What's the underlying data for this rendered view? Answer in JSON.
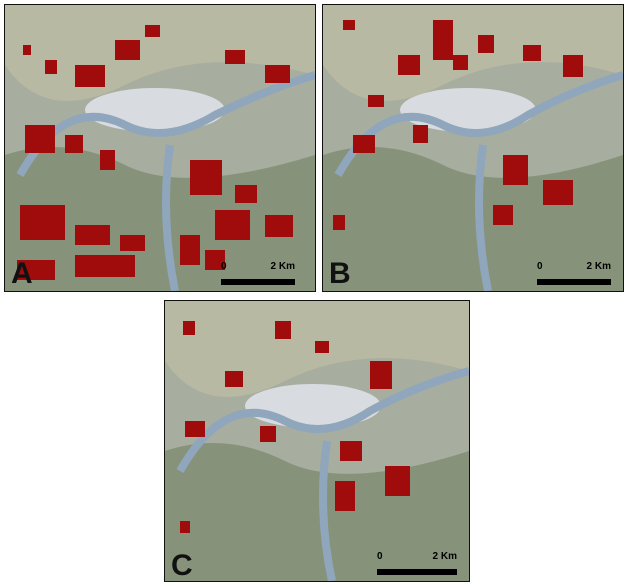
{
  "panels": [
    {
      "letter": "A",
      "scale": {
        "start": "0",
        "end": "2 Km"
      }
    },
    {
      "letter": "B",
      "scale": {
        "start": "0",
        "end": "2 Km"
      }
    },
    {
      "letter": "C",
      "scale": {
        "start": "0",
        "end": "2 Km"
      }
    }
  ],
  "colors": {
    "river": "#8fa6bc",
    "urban": "#d9dde2",
    "highlight": "#a00c0c",
    "vegetation": "#7f8d6f",
    "fields": "#c8c8b4"
  },
  "icons": [
    "river-line",
    "urban-area",
    "red-patch"
  ]
}
